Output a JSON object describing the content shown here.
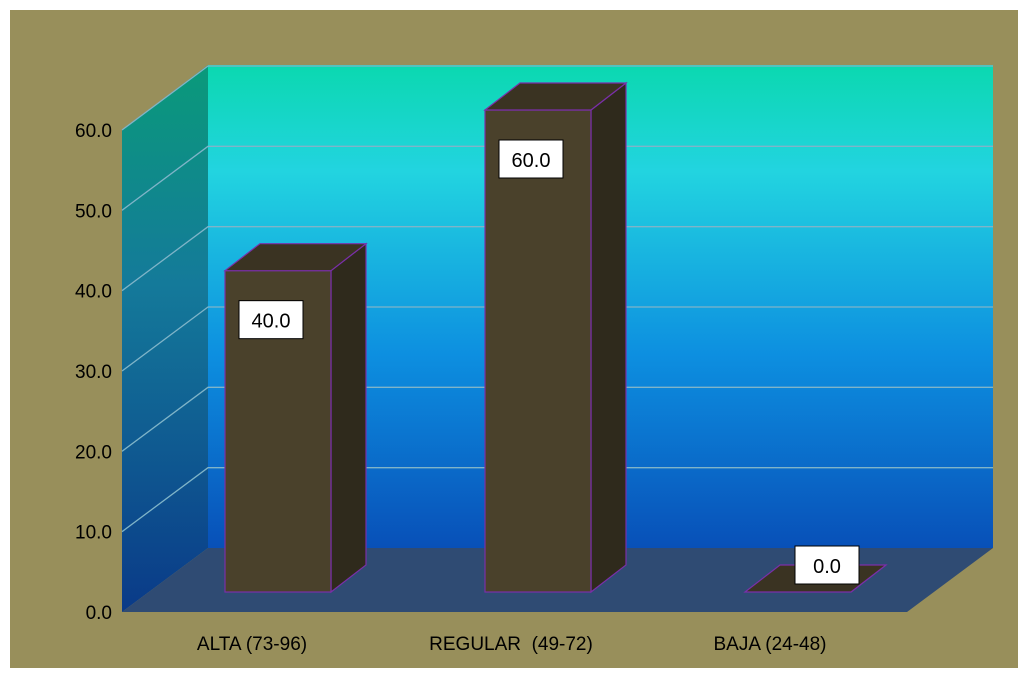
{
  "chart_data": {
    "type": "bar",
    "title": "",
    "xlabel": "",
    "ylabel": "",
    "categories": [
      "ALTA (73-96)",
      "REGULAR  (49-72)",
      "BAJA (24-48)"
    ],
    "values": [
      40.0,
      60.0,
      0.0
    ],
    "data_labels": [
      "40.0",
      "60.0",
      "0.0"
    ],
    "ylim": [
      0,
      60
    ],
    "yticks": [
      "0.0",
      "10.0",
      "20.0",
      "30.0",
      "40.0",
      "50.0",
      "60.0"
    ],
    "grid": true,
    "legend": "none",
    "colors": {
      "chart_area": "#988f5b",
      "bar_front": "#4a412b",
      "bar_top": "#3a3322",
      "bar_side": "#2f2a1c",
      "bar_edge": "#7a2fa8",
      "floor": "#2f4b73",
      "wall_top": "#0fd7b4",
      "wall_bottom": "#0a47a8",
      "gridline": "#7fb4c8"
    }
  }
}
